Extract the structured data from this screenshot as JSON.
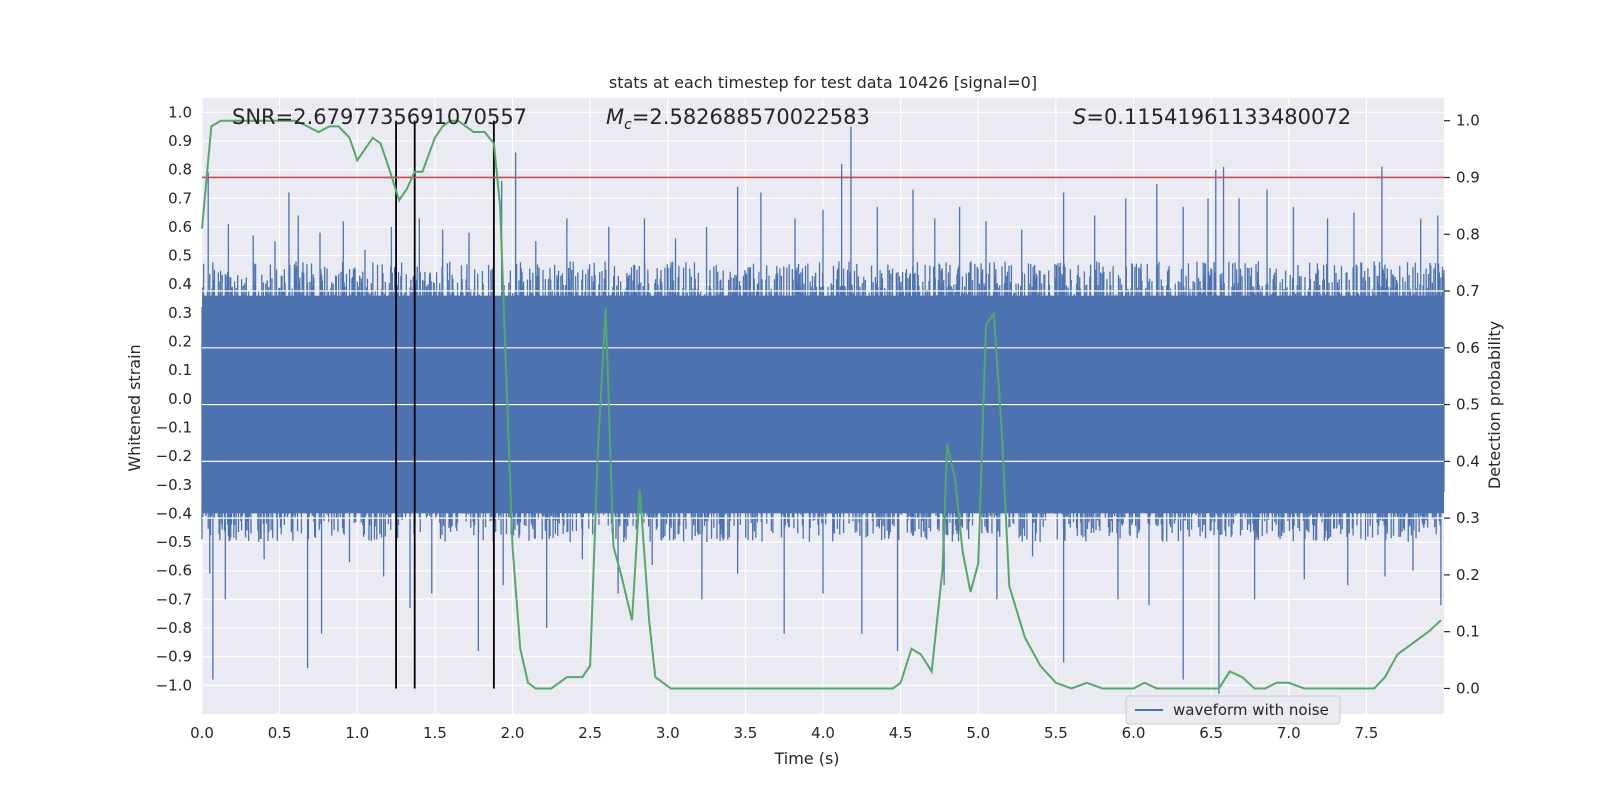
{
  "chart_data": {
    "type": "line",
    "title": "stats at each timestep for test data 10426 [signal=0]",
    "xlabel": "Time (s)",
    "ylabel": "Whitened strain",
    "y2label": "Detection probability",
    "xlim": [
      0.0,
      8.0
    ],
    "ylim": [
      -1.1,
      1.05
    ],
    "y2lim": [
      -0.045,
      1.04
    ],
    "xticks": [
      0.0,
      0.5,
      1.0,
      1.5,
      2.0,
      2.5,
      3.0,
      3.5,
      4.0,
      4.5,
      5.0,
      5.5,
      6.0,
      6.5,
      7.0,
      7.5
    ],
    "xtick_labels": [
      "0.0",
      "0.5",
      "1.0",
      "1.5",
      "2.0",
      "2.5",
      "3.0",
      "3.5",
      "4.0",
      "4.5",
      "5.0",
      "5.5",
      "6.0",
      "6.5",
      "7.0",
      "7.5"
    ],
    "yticks": [
      -1.0,
      -0.9,
      -0.8,
      -0.7,
      -0.6,
      -0.5,
      -0.4,
      -0.3,
      -0.2,
      -0.1,
      0.0,
      0.1,
      0.2,
      0.3,
      0.4,
      0.5,
      0.6,
      0.7,
      0.8,
      0.9,
      1.0
    ],
    "ytick_labels": [
      "−1.0",
      "−0.9",
      "−0.8",
      "−0.7",
      "−0.6",
      "−0.5",
      "−0.4",
      "−0.3",
      "−0.2",
      "−0.1",
      "0.0",
      "0.1",
      "0.2",
      "0.3",
      "0.4",
      "0.5",
      "0.6",
      "0.7",
      "0.8",
      "0.9",
      "1.0"
    ],
    "y2ticks": [
      0.0,
      0.1,
      0.2,
      0.3,
      0.4,
      0.5,
      0.6,
      0.7,
      0.8,
      0.9,
      1.0
    ],
    "y2tick_labels": [
      "0.0",
      "0.1",
      "0.2",
      "0.3",
      "0.4",
      "0.5",
      "0.6",
      "0.7",
      "0.8",
      "0.9",
      "1.0"
    ],
    "annotations": {
      "snr": "SNR=2.6797735691070557",
      "mc_symbol": "M",
      "mc_sub": "c",
      "mc_value": "=2.582688570022583",
      "s_symbol": "S",
      "s_value": "=0.11541961133480072"
    },
    "legend": {
      "label": "waveform with noise",
      "placement": "lower-right"
    },
    "threshold": {
      "value": 0.9,
      "axis": "right",
      "color": "#c44e52"
    },
    "vertical_markers": [
      1.25,
      1.37,
      1.88
    ],
    "waveform": {
      "name": "waveform with noise",
      "color": "#4c72b0",
      "duration": 8.0,
      "core_band": [
        -0.4,
        0.36
      ],
      "spikes_up": [
        [
          0.04,
          0.79
        ],
        [
          0.17,
          0.61
        ],
        [
          0.33,
          0.57
        ],
        [
          0.47,
          0.55
        ],
        [
          0.56,
          0.72
        ],
        [
          0.62,
          0.64
        ],
        [
          0.76,
          0.58
        ],
        [
          0.91,
          0.62
        ],
        [
          1.05,
          0.52
        ],
        [
          1.22,
          0.6
        ],
        [
          1.4,
          0.63
        ],
        [
          1.55,
          0.59
        ],
        [
          1.72,
          0.58
        ],
        [
          1.93,
          0.76
        ],
        [
          2.02,
          0.86
        ],
        [
          2.15,
          0.55
        ],
        [
          2.35,
          0.63
        ],
        [
          2.62,
          0.6
        ],
        [
          2.85,
          0.63
        ],
        [
          3.05,
          0.56
        ],
        [
          3.25,
          0.6
        ],
        [
          3.45,
          0.74
        ],
        [
          3.6,
          0.72
        ],
        [
          3.82,
          0.63
        ],
        [
          4.0,
          0.66
        ],
        [
          4.12,
          0.82
        ],
        [
          4.18,
          0.95
        ],
        [
          4.35,
          0.67
        ],
        [
          4.58,
          0.73
        ],
        [
          4.72,
          0.63
        ],
        [
          4.88,
          0.67
        ],
        [
          5.05,
          0.62
        ],
        [
          5.28,
          0.59
        ],
        [
          5.55,
          0.72
        ],
        [
          5.75,
          0.64
        ],
        [
          5.95,
          0.7
        ],
        [
          6.15,
          0.75
        ],
        [
          6.32,
          0.67
        ],
        [
          6.48,
          0.7
        ],
        [
          6.53,
          0.8
        ],
        [
          6.58,
          0.81
        ],
        [
          6.68,
          0.7
        ],
        [
          6.86,
          0.73
        ],
        [
          7.03,
          0.67
        ],
        [
          7.25,
          0.63
        ],
        [
          7.42,
          0.65
        ],
        [
          7.6,
          0.81
        ],
        [
          7.85,
          0.63
        ],
        [
          7.96,
          0.64
        ]
      ],
      "spikes_down": [
        [
          0.05,
          -0.61
        ],
        [
          0.07,
          -0.98
        ],
        [
          0.15,
          -0.7
        ],
        [
          0.4,
          -0.56
        ],
        [
          0.68,
          -0.94
        ],
        [
          0.77,
          -0.82
        ],
        [
          0.95,
          -0.57
        ],
        [
          1.17,
          -0.62
        ],
        [
          1.34,
          -0.73
        ],
        [
          1.48,
          -0.68
        ],
        [
          1.78,
          -0.88
        ],
        [
          1.94,
          -0.65
        ],
        [
          2.22,
          -0.8
        ],
        [
          2.45,
          -0.56
        ],
        [
          2.68,
          -0.68
        ],
        [
          2.9,
          -0.58
        ],
        [
          3.22,
          -0.7
        ],
        [
          3.45,
          -0.61
        ],
        [
          3.75,
          -0.82
        ],
        [
          4.0,
          -0.68
        ],
        [
          4.25,
          -0.82
        ],
        [
          4.48,
          -0.88
        ],
        [
          4.78,
          -0.65
        ],
        [
          5.12,
          -0.7
        ],
        [
          5.35,
          -0.55
        ],
        [
          5.55,
          -0.92
        ],
        [
          5.9,
          -0.7
        ],
        [
          6.1,
          -0.72
        ],
        [
          6.32,
          -0.98
        ],
        [
          6.55,
          -1.03
        ],
        [
          6.78,
          -0.7
        ],
        [
          7.1,
          -0.63
        ],
        [
          7.38,
          -0.65
        ],
        [
          7.62,
          -0.62
        ],
        [
          7.8,
          -0.6
        ],
        [
          7.98,
          -0.72
        ]
      ]
    },
    "series": [
      {
        "name": "detection probability",
        "axis": "right",
        "color": "#55a868",
        "x": [
          0.0,
          0.06,
          0.12,
          0.2,
          0.3,
          0.4,
          0.5,
          0.6,
          0.68,
          0.75,
          0.82,
          0.88,
          0.95,
          1.0,
          1.05,
          1.1,
          1.15,
          1.2,
          1.27,
          1.32,
          1.37,
          1.42,
          1.5,
          1.55,
          1.6,
          1.65,
          1.7,
          1.75,
          1.82,
          1.88,
          1.92,
          1.96,
          2.0,
          2.05,
          2.1,
          2.15,
          2.2,
          2.25,
          2.3,
          2.35,
          2.45,
          2.5,
          2.55,
          2.6,
          2.65,
          2.7,
          2.77,
          2.82,
          2.88,
          2.92,
          2.97,
          3.02,
          3.1,
          3.2,
          3.35,
          3.5,
          3.75,
          4.0,
          4.25,
          4.45,
          4.5,
          4.57,
          4.63,
          4.7,
          4.77,
          4.8,
          4.85,
          4.9,
          4.95,
          5.0,
          5.05,
          5.1,
          5.15,
          5.2,
          5.3,
          5.4,
          5.5,
          5.6,
          5.7,
          5.8,
          5.9,
          6.0,
          6.07,
          6.15,
          6.3,
          6.45,
          6.55,
          6.62,
          6.7,
          6.78,
          6.85,
          6.92,
          7.0,
          7.1,
          7.2,
          7.35,
          7.45,
          7.55,
          7.62,
          7.7,
          7.8,
          7.9,
          7.98
        ],
        "y": [
          0.81,
          0.99,
          1.0,
          1.0,
          1.0,
          1.0,
          1.0,
          1.0,
          0.99,
          0.98,
          0.99,
          0.99,
          0.97,
          0.93,
          0.95,
          0.97,
          0.96,
          0.92,
          0.86,
          0.88,
          0.91,
          0.91,
          0.97,
          0.99,
          1.0,
          1.0,
          0.99,
          0.98,
          0.98,
          0.96,
          0.85,
          0.55,
          0.25,
          0.07,
          0.01,
          0.0,
          0.0,
          0.0,
          0.01,
          0.02,
          0.02,
          0.04,
          0.42,
          0.67,
          0.25,
          0.2,
          0.12,
          0.35,
          0.12,
          0.02,
          0.01,
          0.0,
          0.0,
          0.0,
          0.0,
          0.0,
          0.0,
          0.0,
          0.0,
          0.0,
          0.01,
          0.07,
          0.06,
          0.03,
          0.21,
          0.43,
          0.37,
          0.24,
          0.17,
          0.22,
          0.64,
          0.66,
          0.46,
          0.18,
          0.09,
          0.04,
          0.01,
          0.0,
          0.01,
          0.0,
          0.0,
          0.0,
          0.01,
          0.0,
          0.0,
          0.0,
          0.0,
          0.03,
          0.02,
          0.0,
          0.0,
          0.01,
          0.01,
          0.0,
          0.0,
          0.0,
          0.0,
          0.0,
          0.02,
          0.06,
          0.08,
          0.1,
          0.12
        ]
      }
    ]
  }
}
